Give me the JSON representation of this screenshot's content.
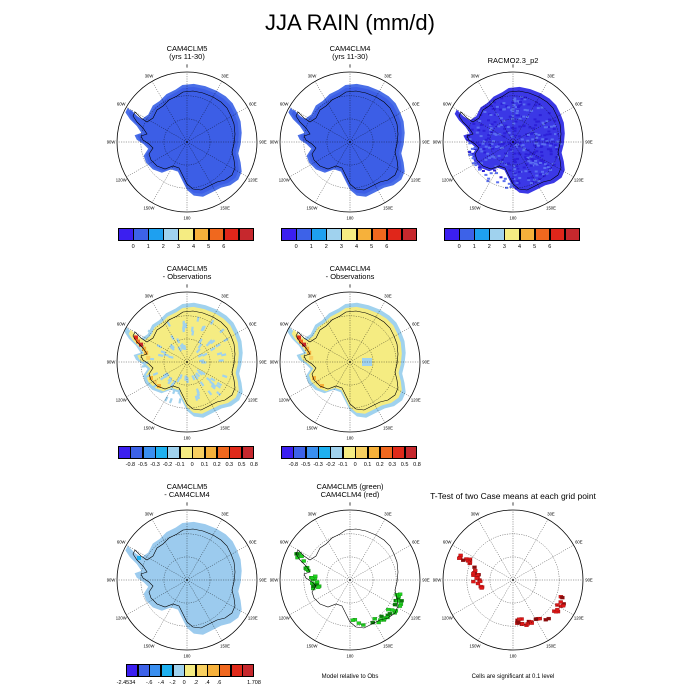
{
  "page_title": "JJA RAIN (mm/d)",
  "map_labels": [
    "0",
    "30E",
    "60E",
    "90E",
    "120E",
    "150E",
    "180",
    "150W",
    "120W",
    "90W",
    "60W",
    "30W"
  ],
  "panels": [
    {
      "key": "p1",
      "title": [
        "CAM4CLM5",
        "(yrs 11-30)"
      ],
      "fill": "#3c5ee6",
      "field": "solid",
      "legend": "rain"
    },
    {
      "key": "p2",
      "title": [
        "CAM4CLM4",
        "(yrs 11-30)"
      ],
      "fill": "#3c5ee6",
      "field": "solid",
      "legend": "rain"
    },
    {
      "key": "p3",
      "title": [
        "RACMO2.3_p2"
      ],
      "fill": "#3c5ee6",
      "field": "speckle",
      "legend": "rain"
    },
    {
      "key": "p4",
      "title": [
        "CAM4CLM5",
        "- Observations"
      ],
      "fill": "#f5ec82",
      "field": "diff5",
      "legend": "diff"
    },
    {
      "key": "p5",
      "title": [
        "CAM4CLM4",
        "- Observations"
      ],
      "fill": "#f5ec82",
      "field": "diff4",
      "legend": "diff"
    },
    {
      "key": "p7",
      "title": [
        "CAM4CLM5",
        "- CAM4CLM4"
      ],
      "fill": "#9ccbee",
      "field": "diffcam",
      "legend": "camdiff"
    },
    {
      "key": "p8",
      "title": [
        "CAM4CLM5 (green)",
        "CAM4CLM4 (red)"
      ],
      "fill": "none",
      "field": "greenred",
      "legend": "none",
      "footer": "Model relative to Obs"
    },
    {
      "key": "p9",
      "title": [
        "T-Test of two Case means at each grid point"
      ],
      "fill": "none",
      "field": "ttest",
      "legend": "none",
      "footer": "Cells are significant at 0.1 level"
    }
  ],
  "legends": {
    "rain": {
      "colors": [
        "#3b1ff0",
        "#3d62e8",
        "#1ea0f0",
        "#a0d2ee",
        "#f5ec82",
        "#f6b13b",
        "#f0681e",
        "#e0261a",
        "#c6282d"
      ],
      "ticks": [
        "0",
        "1",
        "2",
        "3",
        "4",
        "5",
        "6"
      ]
    },
    "diff": {
      "colors": [
        "#3b1ff0",
        "#3d62e8",
        "#3a8ff0",
        "#1eb0f0",
        "#a0d2ee",
        "#f5ec82",
        "#f8d060",
        "#f6b13b",
        "#f0681e",
        "#e02a1a",
        "#c6282d"
      ],
      "ticks": [
        "-0.8",
        "-0.5",
        "-0.3",
        "-0.2",
        "-0.1",
        "0",
        "0.1",
        "0.2",
        "0.3",
        "0.5",
        "0.8"
      ]
    },
    "camdiff": {
      "colors": [
        "#3b1ff0",
        "#3d62e8",
        "#3a8ff0",
        "#1eb0f0",
        "#a0d2ee",
        "#f5ec82",
        "#f8d060",
        "#f6b13b",
        "#f0681e",
        "#e02a1a",
        "#c6282d"
      ],
      "ticks": [
        "-2.4534",
        "-.6",
        "-.4",
        "-.2",
        "0",
        ".2",
        ".4",
        ".6",
        "1.708"
      ]
    }
  },
  "chart_data": [
    {
      "type": "heatmap",
      "title": "CAM4CLM5 (yrs 11-30)",
      "projection": "south polar stereographic",
      "levels": [
        0,
        1,
        2,
        3,
        4,
        5,
        6
      ],
      "dominant_value": "0-1"
    },
    {
      "type": "heatmap",
      "title": "CAM4CLM4 (yrs 11-30)",
      "projection": "south polar stereographic",
      "levels": [
        0,
        1,
        2,
        3,
        4,
        5,
        6
      ],
      "dominant_value": "0-1"
    },
    {
      "type": "heatmap",
      "title": "RACMO2.3_p2",
      "projection": "south polar stereographic",
      "levels": [
        0,
        1,
        2,
        3,
        4,
        5,
        6
      ],
      "dominant_value": "0-1"
    },
    {
      "type": "heatmap",
      "title": "CAM4CLM5 - Observations",
      "projection": "south polar stereographic",
      "levels": [
        -0.8,
        -0.5,
        -0.3,
        -0.2,
        -0.1,
        0,
        0.1,
        0.2,
        0.3,
        0.5,
        0.8
      ],
      "dominant_value": "0-0.1"
    },
    {
      "type": "heatmap",
      "title": "CAM4CLM4 - Observations",
      "projection": "south polar stereographic",
      "levels": [
        -0.8,
        -0.5,
        -0.3,
        -0.2,
        -0.1,
        0,
        0.1,
        0.2,
        0.3,
        0.5,
        0.8
      ],
      "dominant_value": "0-0.1"
    },
    {
      "type": "heatmap",
      "title": "CAM4CLM5 - CAM4CLM4",
      "projection": "south polar stereographic",
      "levels": [
        -2.4534,
        -0.6,
        -0.4,
        -0.2,
        0,
        0.2,
        0.4,
        0.6,
        1.708
      ],
      "dominant_value": "-0.2-0"
    },
    {
      "type": "heatmap",
      "title": "CAM4CLM5 (green) CAM4CLM4 (red)",
      "projection": "south polar stereographic",
      "note": "Model relative to Obs"
    },
    {
      "type": "heatmap",
      "title": "T-Test of two Case means at each grid point",
      "projection": "south polar stereographic",
      "note": "Cells are significant at 0.1 level"
    }
  ]
}
